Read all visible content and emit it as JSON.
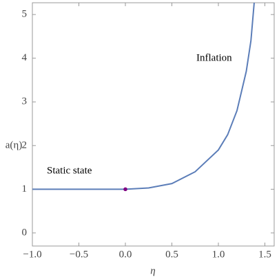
{
  "chart_data": {
    "type": "line",
    "x_label": "η",
    "y_label": "a(η)",
    "annotations": [
      "Static state",
      "Inflation"
    ],
    "series": [
      {
        "name": "a(η)",
        "color": "#5b7db8",
        "x": [
          -1.0,
          0,
          0.25,
          0.5,
          0.75,
          1.0,
          1.1,
          1.2,
          1.3,
          1.35,
          1.385
        ],
        "values": [
          1,
          1,
          1.03,
          1.13,
          1.4,
          1.9,
          2.25,
          2.8,
          3.7,
          4.4,
          5.27
        ]
      }
    ],
    "marker": {
      "x": 0,
      "y": 1,
      "color": "#800080"
    },
    "xlim": [
      -1.0,
      1.6
    ],
    "ylim": [
      -0.3,
      5.27
    ],
    "xticks": [
      {
        "value": -1.0,
        "label": "−1.0"
      },
      {
        "value": -0.5,
        "label": "−0.5"
      },
      {
        "value": 0,
        "label": "0.0"
      },
      0.5,
      {
        "value": 1,
        "label": "1.0"
      },
      1.5
    ],
    "yticks": [
      0,
      1,
      2,
      3,
      4,
      5
    ]
  }
}
